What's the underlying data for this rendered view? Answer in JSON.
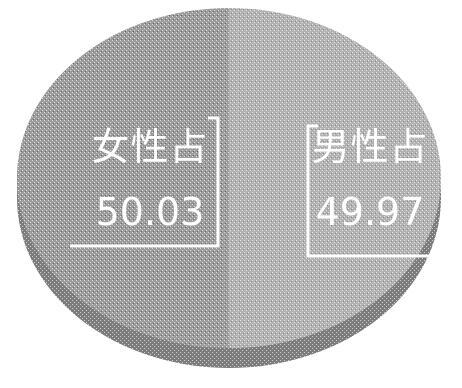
{
  "chart_data": {
    "type": "pie",
    "style": "3d",
    "slices": [
      {
        "label": "女性占",
        "value": 50.03,
        "value_text": "50.03",
        "color": "#9a9a9a"
      },
      {
        "label": "男性占",
        "value": 49.97,
        "value_text": "49.97",
        "color": "#b4b4b4"
      }
    ],
    "colors": {
      "side": "#6e6e6e",
      "label_text": "#ffffff"
    }
  }
}
